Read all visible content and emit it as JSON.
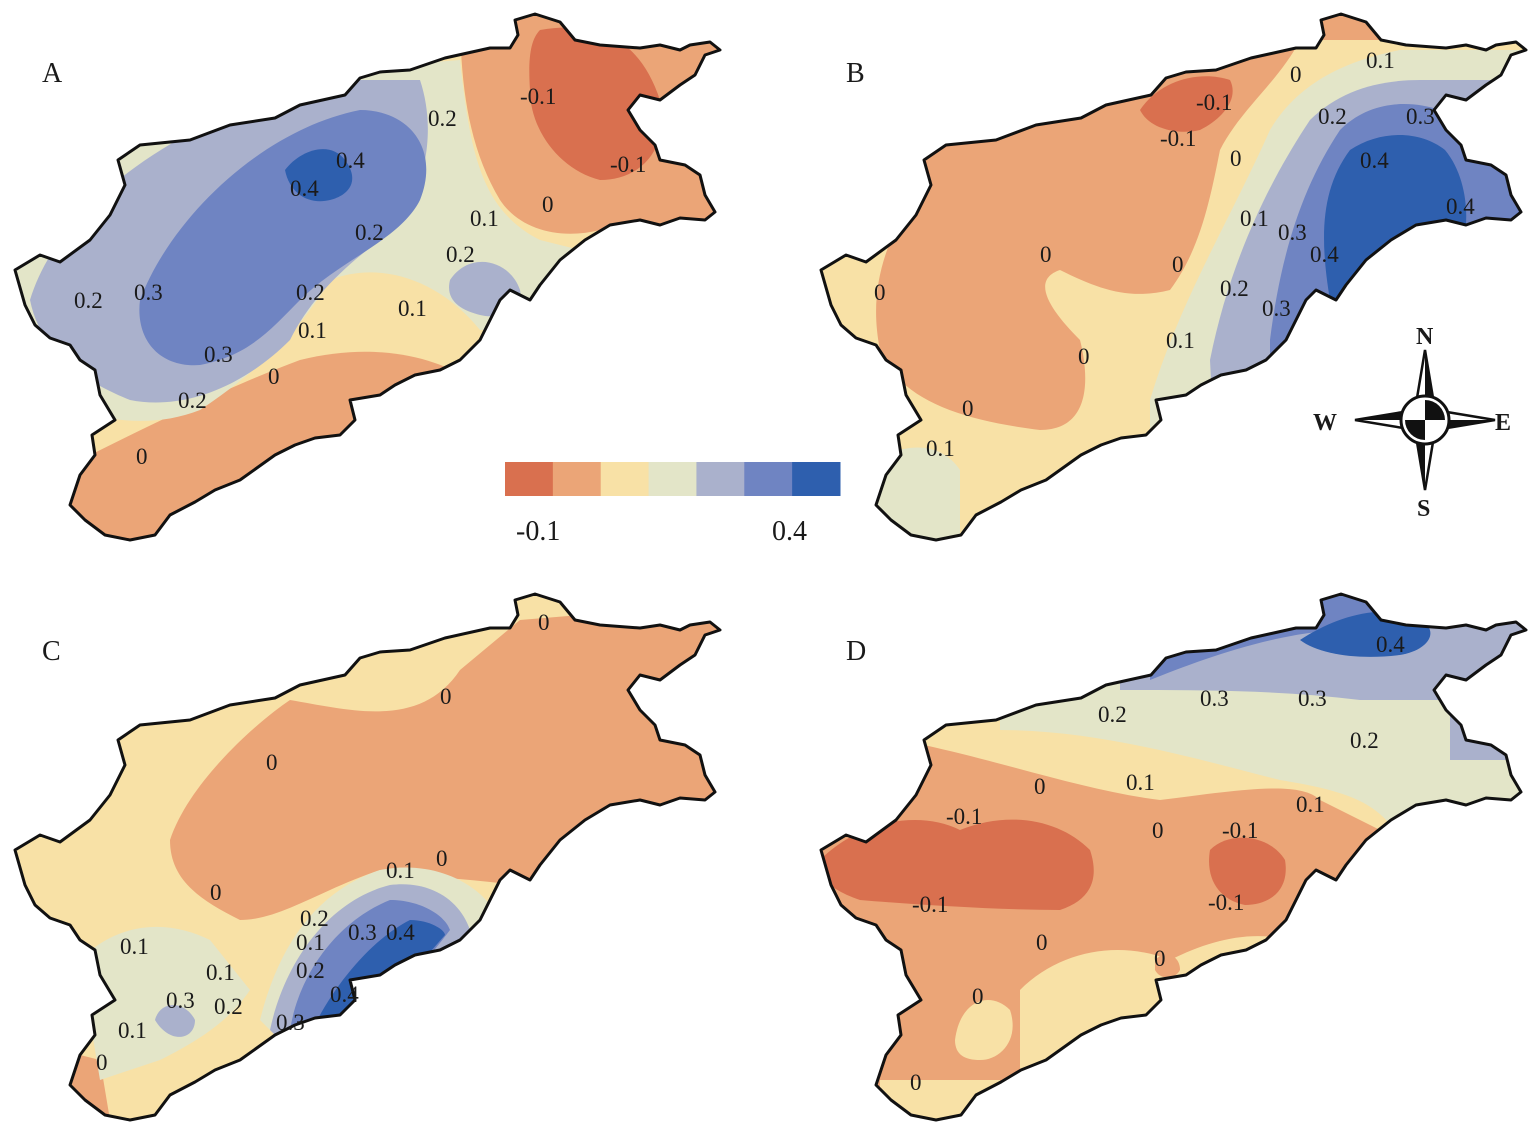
{
  "colors": {
    "c0": "#d9704f",
    "c1": "#eba577",
    "c2": "#f8e1a6",
    "c3": "#e3e5c8",
    "c4": "#aab1cc",
    "c5": "#6f84c2",
    "c6": "#2e5fae"
  },
  "legend": {
    "swatches": [
      "#d9704f",
      "#eba577",
      "#f8e1a6",
      "#e3e5c8",
      "#aab1cc",
      "#6f84c2",
      "#2e5fae"
    ],
    "min_label": "-0.1",
    "max_label": "0.4"
  },
  "compass": {
    "n": "N",
    "s": "S",
    "e": "E",
    "w": "W"
  },
  "panels": [
    {
      "label": "A",
      "contour_labels": [
        "-0.1",
        "-0.1",
        "0.2",
        "0.4",
        "0.4",
        "0.2",
        "0.1",
        "0",
        "0.2",
        "0.2",
        "0.3",
        "0.2",
        "0.1",
        "0.1",
        "0.3",
        "0",
        "0.2",
        "0"
      ]
    },
    {
      "label": "B",
      "contour_labels": [
        "0",
        "0.1",
        "-0.1",
        "-0.1",
        "0.2",
        "0.3",
        "0",
        "0.4",
        "0.4",
        "0.1",
        "0.3",
        "0.4",
        "0",
        "0",
        "0",
        "0.2",
        "0.3",
        "0.1",
        "0",
        "0",
        "0.1"
      ]
    },
    {
      "label": "C",
      "contour_labels": [
        "0",
        "0",
        "0",
        "0",
        "0",
        "0.1",
        "0.1",
        "0.1",
        "0.2",
        "0.3",
        "0.4",
        "0.1",
        "0.2",
        "0.2",
        "0.4",
        "0.1",
        "0.3",
        "0.3",
        "0"
      ]
    },
    {
      "label": "D",
      "contour_labels": [
        "0.4",
        "0.2",
        "0.3",
        "0.3",
        "0.2",
        "0",
        "0.1",
        "0.1",
        "-0.1",
        "0",
        "-0.1",
        "-0.1",
        "-0.1",
        "0",
        "0",
        "0",
        "0"
      ]
    }
  ]
}
